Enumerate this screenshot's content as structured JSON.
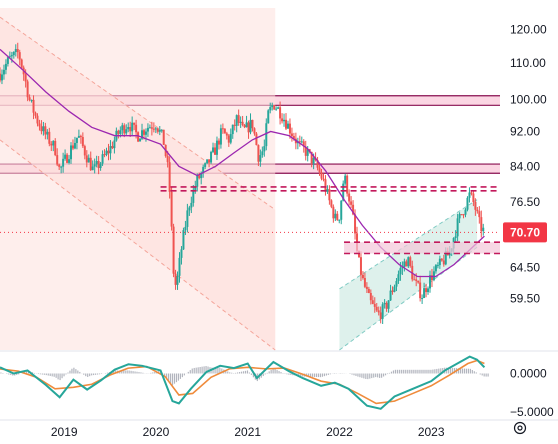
{
  "chart_data": {
    "type": "candlestick",
    "price_axis": {
      "ticks": [
        "120.00",
        "110.00",
        "100.00",
        "92.00",
        "84.00",
        "76.50",
        "70.70",
        "64.50",
        "59.50"
      ],
      "tick_values": [
        120,
        110,
        100,
        92,
        84,
        76.5,
        64.5,
        59.5
      ],
      "scale": "log",
      "ylim": [
        52,
        127
      ]
    },
    "oscillator_axis": {
      "ticks": [
        "0.0000",
        "−5.0000"
      ],
      "tick_values": [
        0,
        -5
      ],
      "ylim": [
        -5.8,
        2.8
      ]
    },
    "time_axis": {
      "ticks": [
        "2019",
        "2020",
        "2021",
        "2022",
        "2023"
      ],
      "tick_values": [
        2019.0,
        2020.0,
        2021.0,
        2022.0,
        2023.0
      ],
      "xlim": [
        2018.3,
        2023.75
      ]
    },
    "last_price": {
      "label": "70.70",
      "value": 70.7,
      "color": "#f23645"
    },
    "price_path": [
      [
        2018.3,
        107
      ],
      [
        2018.4,
        111
      ],
      [
        2018.5,
        113
      ],
      [
        2018.55,
        108
      ],
      [
        2018.62,
        100
      ],
      [
        2018.7,
        95
      ],
      [
        2018.8,
        91
      ],
      [
        2018.9,
        88
      ],
      [
        2018.95,
        83
      ],
      [
        2019.05,
        87
      ],
      [
        2019.15,
        91
      ],
      [
        2019.25,
        86
      ],
      [
        2019.32,
        83
      ],
      [
        2019.4,
        85
      ],
      [
        2019.5,
        88
      ],
      [
        2019.6,
        92
      ],
      [
        2019.7,
        94
      ],
      [
        2019.8,
        91
      ],
      [
        2019.9,
        93
      ],
      [
        2020.0,
        94
      ],
      [
        2020.08,
        90
      ],
      [
        2020.14,
        82
      ],
      [
        2020.19,
        64
      ],
      [
        2020.22,
        61
      ],
      [
        2020.28,
        68
      ],
      [
        2020.36,
        76
      ],
      [
        2020.45,
        81
      ],
      [
        2020.55,
        84
      ],
      [
        2020.65,
        88
      ],
      [
        2020.72,
        92
      ],
      [
        2020.8,
        90
      ],
      [
        2020.88,
        95
      ],
      [
        2020.95,
        92
      ],
      [
        2021.05,
        94
      ],
      [
        2021.12,
        86
      ],
      [
        2021.18,
        88
      ],
      [
        2021.22,
        96
      ],
      [
        2021.28,
        99
      ],
      [
        2021.35,
        97
      ],
      [
        2021.45,
        93
      ],
      [
        2021.55,
        89
      ],
      [
        2021.65,
        87
      ],
      [
        2021.75,
        84
      ],
      [
        2021.82,
        81
      ],
      [
        2021.9,
        76
      ],
      [
        2021.96,
        73
      ],
      [
        2022.0,
        74
      ],
      [
        2022.05,
        82
      ],
      [
        2022.1,
        78
      ],
      [
        2022.15,
        73
      ],
      [
        2022.2,
        66
      ],
      [
        2022.26,
        62
      ],
      [
        2022.33,
        59
      ],
      [
        2022.42,
        57
      ],
      [
        2022.5,
        58
      ],
      [
        2022.58,
        61
      ],
      [
        2022.66,
        64
      ],
      [
        2022.74,
        66
      ],
      [
        2022.82,
        62
      ],
      [
        2022.9,
        60
      ],
      [
        2023.0,
        63
      ],
      [
        2023.1,
        65
      ],
      [
        2023.2,
        67
      ],
      [
        2023.28,
        72
      ],
      [
        2023.35,
        75
      ],
      [
        2023.42,
        78
      ],
      [
        2023.47,
        76
      ],
      [
        2023.53,
        72
      ],
      [
        2023.58,
        70.7
      ]
    ],
    "moving_average": {
      "color": "#9c27b0",
      "points": [
        [
          2018.3,
          114
        ],
        [
          2018.55,
          108
        ],
        [
          2018.8,
          102
        ],
        [
          2019.05,
          97
        ],
        [
          2019.3,
          93
        ],
        [
          2019.55,
          91
        ],
        [
          2019.8,
          91
        ],
        [
          2020.05,
          89
        ],
        [
          2020.25,
          84
        ],
        [
          2020.45,
          82
        ],
        [
          2020.65,
          84
        ],
        [
          2020.85,
          87
        ],
        [
          2021.05,
          90
        ],
        [
          2021.25,
          92
        ],
        [
          2021.45,
          91
        ],
        [
          2021.65,
          88
        ],
        [
          2021.85,
          83
        ],
        [
          2022.05,
          77
        ],
        [
          2022.25,
          72
        ],
        [
          2022.45,
          68
        ],
        [
          2022.65,
          65
        ],
        [
          2022.85,
          63
        ],
        [
          2023.05,
          63
        ],
        [
          2023.25,
          65
        ],
        [
          2023.45,
          68
        ],
        [
          2023.58,
          70
        ]
      ]
    },
    "horizontal_zones": [
      {
        "from": 98.5,
        "to": 101,
        "color": "#f8bbd0",
        "line": "#880e4f",
        "x0": 2018.3,
        "x1": 2023.75
      },
      {
        "from": 82.5,
        "to": 84.5,
        "color": "#f8bbd0",
        "line": "#880e4f",
        "x0": 2018.3,
        "x1": 2023.75
      }
    ],
    "dashed_levels": [
      {
        "from": 78.8,
        "to": 79.6,
        "color": "#c2185b",
        "x0": 2020.05,
        "x1": 2023.75
      },
      {
        "from": 66.9,
        "to": 68.9,
        "color": "#c2185b",
        "x0": 2022.05,
        "x1": 2023.75,
        "fill": "#f3c6d8"
      }
    ],
    "channels": [
      {
        "kind": "descending",
        "fill": "#fde0dc",
        "edge": "#f4a59a",
        "upper": [
          [
            2018.3,
            124
          ],
          [
            2021.3,
            75
          ]
        ],
        "lower": [
          [
            2018.3,
            90
          ],
          [
            2021.3,
            52
          ]
        ],
        "shade_until": 2021.3
      },
      {
        "kind": "ascending",
        "fill": "#d8efe9",
        "edge": "#80cbc4",
        "upper": [
          [
            2022.0,
            61
          ],
          [
            2023.5,
            77
          ]
        ],
        "lower": [
          [
            2022.0,
            52
          ],
          [
            2023.5,
            68
          ]
        ]
      }
    ],
    "oscillator": {
      "fast": {
        "color": "#26a69a",
        "points": [
          [
            2018.3,
            0.8
          ],
          [
            2018.45,
            0.0
          ],
          [
            2018.6,
            0.4
          ],
          [
            2018.8,
            -1.5
          ],
          [
            2018.95,
            -3.1
          ],
          [
            2019.1,
            -0.8
          ],
          [
            2019.25,
            -2.1
          ],
          [
            2019.4,
            -0.9
          ],
          [
            2019.55,
            0.5
          ],
          [
            2019.7,
            1.2
          ],
          [
            2019.85,
            1.0
          ],
          [
            2020.05,
            0.4
          ],
          [
            2020.18,
            -3.6
          ],
          [
            2020.25,
            -3.9
          ],
          [
            2020.38,
            -2.0
          ],
          [
            2020.55,
            0.2
          ],
          [
            2020.7,
            1.0
          ],
          [
            2020.85,
            0.7
          ],
          [
            2021.0,
            1.3
          ],
          [
            2021.1,
            -0.6
          ],
          [
            2021.28,
            1.5
          ],
          [
            2021.45,
            0.3
          ],
          [
            2021.6,
            -0.6
          ],
          [
            2021.8,
            -1.6
          ],
          [
            2021.95,
            -1.2
          ],
          [
            2022.1,
            -2.0
          ],
          [
            2022.3,
            -4.2
          ],
          [
            2022.45,
            -4.6
          ],
          [
            2022.6,
            -3.0
          ],
          [
            2022.8,
            -2.0
          ],
          [
            2023.0,
            -1.0
          ],
          [
            2023.15,
            0.4
          ],
          [
            2023.3,
            1.4
          ],
          [
            2023.42,
            2.2
          ],
          [
            2023.5,
            1.8
          ],
          [
            2023.58,
            0.8
          ]
        ]
      },
      "slow": {
        "color": "#ef8b3b",
        "points": [
          [
            2018.3,
            0.6
          ],
          [
            2018.5,
            0.3
          ],
          [
            2018.7,
            -0.5
          ],
          [
            2018.9,
            -2.0
          ],
          [
            2019.1,
            -1.8
          ],
          [
            2019.3,
            -1.4
          ],
          [
            2019.5,
            -0.2
          ],
          [
            2019.7,
            0.7
          ],
          [
            2019.9,
            0.9
          ],
          [
            2020.1,
            -0.4
          ],
          [
            2020.25,
            -2.8
          ],
          [
            2020.4,
            -2.6
          ],
          [
            2020.6,
            -0.5
          ],
          [
            2020.8,
            0.6
          ],
          [
            2021.0,
            0.8
          ],
          [
            2021.2,
            0.6
          ],
          [
            2021.4,
            0.7
          ],
          [
            2021.6,
            -0.1
          ],
          [
            2021.8,
            -1.0
          ],
          [
            2022.0,
            -1.4
          ],
          [
            2022.2,
            -2.6
          ],
          [
            2022.4,
            -3.9
          ],
          [
            2022.6,
            -3.6
          ],
          [
            2022.8,
            -2.6
          ],
          [
            2023.0,
            -1.6
          ],
          [
            2023.2,
            -0.2
          ],
          [
            2023.4,
            1.3
          ],
          [
            2023.5,
            1.7
          ],
          [
            2023.58,
            1.3
          ]
        ]
      },
      "histogram_color": "#b2b5be"
    }
  },
  "ui": {
    "settings_icon": "gear-icon"
  }
}
